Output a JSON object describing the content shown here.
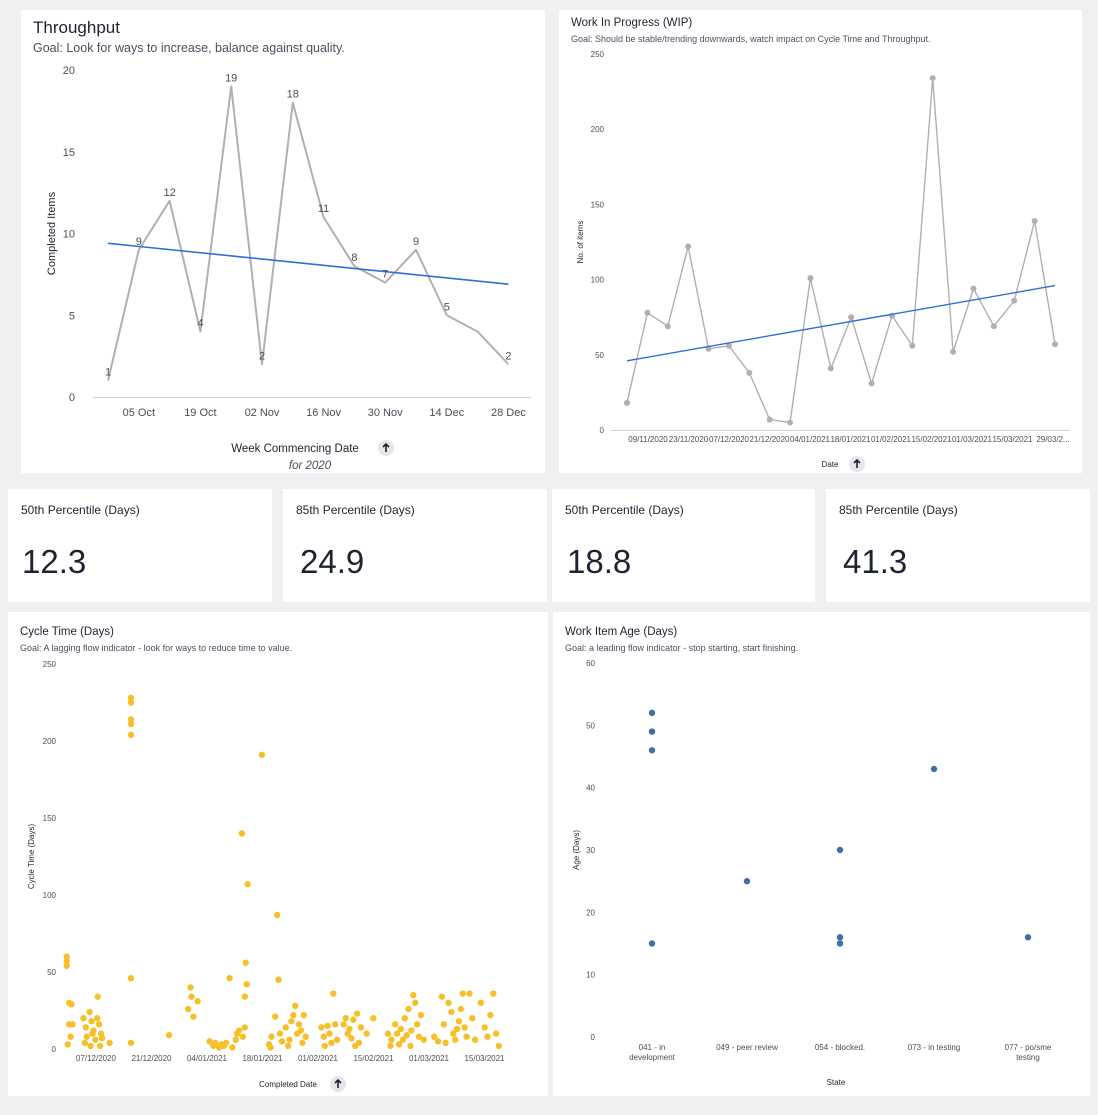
{
  "colors": {
    "line": "#b5aeb0",
    "trend": "#2f6fd6",
    "scatter_yellow": "#f7c02b",
    "scatter_blue": "#3e6fa8",
    "axis_text": "#4a4e5a"
  },
  "throughput": {
    "title": "Throughput",
    "subtitle": "Goal: Look for ways to increase, balance against quality.",
    "sort_icon": "arrow-up-icon",
    "filter_note": "for 2020",
    "chart_data": {
      "type": "line",
      "xlabel": "Week Commencing Date",
      "ylabel": "Completed Items",
      "ylim": [
        0,
        20
      ],
      "yticks": [
        0,
        5,
        10,
        15,
        20
      ],
      "xtick_labels": [
        "05 Oct",
        "19 Oct",
        "02 Nov",
        "16 Nov",
        "30 Nov",
        "14 Dec",
        "28 Dec"
      ],
      "x": [
        "28 Sep",
        "05 Oct",
        "12 Oct",
        "19 Oct",
        "26 Oct",
        "02 Nov",
        "09 Nov",
        "16 Nov",
        "23 Nov",
        "30 Nov",
        "07 Dec",
        "14 Dec",
        "21 Dec",
        "28 Dec"
      ],
      "series": [
        {
          "values": [
            1,
            9,
            12,
            4,
            19,
            2,
            18,
            11,
            8,
            7,
            9,
            5,
            4,
            2
          ]
        }
      ],
      "data_labels": [
        "1",
        "9",
        "12",
        "4",
        "19",
        "2",
        "18",
        "11",
        "8",
        "7",
        "9",
        "5",
        "",
        "2"
      ],
      "trendline": {
        "start": 9.4,
        "end": 6.9
      },
      "grid": false
    }
  },
  "wip": {
    "title": "Work In Progress (WIP)",
    "subtitle": "Goal: Should be stable/trending downwards, watch impact on Cycle Time and Throughput.",
    "sort_icon": "arrow-up-icon",
    "chart_data": {
      "type": "line",
      "xlabel": "Date",
      "ylabel": "No. of items",
      "ylim": [
        0,
        250
      ],
      "yticks": [
        0,
        50,
        100,
        150,
        200,
        250
      ],
      "xtick_labels": [
        "09/11/2020",
        "23/11/2020",
        "07/12/2020",
        "21/12/2020",
        "04/01/2021",
        "18/01/2021",
        "01/02/2021",
        "15/02/2021",
        "01/03/2021",
        "15/03/2021",
        "29/03/2..."
      ],
      "series": [
        {
          "values": [
            18,
            78,
            69,
            122,
            54,
            56,
            38,
            7,
            5,
            101,
            41,
            75,
            31,
            76,
            56,
            234,
            52,
            94,
            69,
            86,
            139,
            57
          ]
        }
      ],
      "trendline": {
        "start": 46,
        "end": 96
      },
      "grid": false
    }
  },
  "kpis": [
    {
      "title": "50th Percentile (Days)",
      "value": "12.3"
    },
    {
      "title": "85th Percentile (Days)",
      "value": "24.9"
    },
    {
      "title": "50th Percentile (Days)",
      "value": "18.8"
    },
    {
      "title": "85th Percentile (Days)",
      "value": "41.3"
    }
  ],
  "cycle_time": {
    "title": "Cycle Time (Days)",
    "subtitle": "Goal: A lagging flow indicator - look for ways to reduce time to value.",
    "sort_icon": "arrow-up-icon",
    "chart_data": {
      "type": "scatter",
      "xlabel": "Completed Date",
      "ylabel": "Cycle Time (Days)",
      "ylim": [
        0,
        250
      ],
      "xlim": [
        0,
        1
      ],
      "yticks": [
        0,
        50,
        100,
        150,
        200,
        250
      ],
      "xtick_labels": [
        "07/12/2020",
        "21/12/2020",
        "04/01/2021",
        "18/01/2021",
        "01/02/2021",
        "15/02/2021",
        "01/03/2021",
        "15/03/2021"
      ],
      "points": [
        [
          0.01,
          60
        ],
        [
          0.01,
          57
        ],
        [
          0.01,
          54
        ],
        [
          0.015,
          30
        ],
        [
          0.02,
          29
        ],
        [
          0.015,
          16
        ],
        [
          0.022,
          16
        ],
        [
          0.018,
          8
        ],
        [
          0.012,
          3
        ],
        [
          0.045,
          20
        ],
        [
          0.05,
          14
        ],
        [
          0.052,
          8
        ],
        [
          0.048,
          4
        ],
        [
          0.058,
          24
        ],
        [
          0.062,
          18
        ],
        [
          0.066,
          12
        ],
        [
          0.07,
          6
        ],
        [
          0.064,
          10
        ],
        [
          0.06,
          2
        ],
        [
          0.075,
          34
        ],
        [
          0.078,
          16
        ],
        [
          0.074,
          20
        ],
        [
          0.082,
          10
        ],
        [
          0.08,
          2
        ],
        [
          0.084,
          7
        ],
        [
          0.1,
          4
        ],
        [
          0.145,
          228
        ],
        [
          0.145,
          225
        ],
        [
          0.145,
          214
        ],
        [
          0.145,
          211
        ],
        [
          0.145,
          204
        ],
        [
          0.145,
          46
        ],
        [
          0.145,
          4
        ],
        [
          0.225,
          9
        ],
        [
          0.265,
          26
        ],
        [
          0.27,
          40
        ],
        [
          0.272,
          34
        ],
        [
          0.276,
          21
        ],
        [
          0.285,
          31
        ],
        [
          0.31,
          5
        ],
        [
          0.318,
          2
        ],
        [
          0.322,
          4
        ],
        [
          0.33,
          1
        ],
        [
          0.335,
          3
        ],
        [
          0.34,
          2
        ],
        [
          0.345,
          4
        ],
        [
          0.352,
          46
        ],
        [
          0.358,
          1
        ],
        [
          0.365,
          6
        ],
        [
          0.368,
          10
        ],
        [
          0.372,
          12
        ],
        [
          0.378,
          140
        ],
        [
          0.384,
          14
        ],
        [
          0.39,
          107
        ],
        [
          0.386,
          56
        ],
        [
          0.388,
          42
        ],
        [
          0.384,
          34
        ],
        [
          0.38,
          8
        ],
        [
          0.42,
          191
        ],
        [
          0.435,
          3
        ],
        [
          0.44,
          8
        ],
        [
          0.438,
          1
        ],
        [
          0.448,
          21
        ],
        [
          0.452,
          87
        ],
        [
          0.455,
          45
        ],
        [
          0.458,
          10
        ],
        [
          0.462,
          5
        ],
        [
          0.47,
          14
        ],
        [
          0.475,
          2
        ],
        [
          0.478,
          6
        ],
        [
          0.482,
          18
        ],
        [
          0.486,
          22
        ],
        [
          0.49,
          28
        ],
        [
          0.494,
          10
        ],
        [
          0.498,
          16
        ],
        [
          0.502,
          12
        ],
        [
          0.505,
          4
        ],
        [
          0.508,
          22
        ],
        [
          0.512,
          8
        ],
        [
          0.545,
          14
        ],
        [
          0.55,
          8
        ],
        [
          0.552,
          2
        ],
        [
          0.558,
          15
        ],
        [
          0.562,
          10
        ],
        [
          0.566,
          4
        ],
        [
          0.57,
          36
        ],
        [
          0.574,
          16
        ],
        [
          0.578,
          6
        ],
        [
          0.592,
          16
        ],
        [
          0.596,
          20
        ],
        [
          0.6,
          10
        ],
        [
          0.604,
          13
        ],
        [
          0.608,
          7
        ],
        [
          0.612,
          19
        ],
        [
          0.616,
          2
        ],
        [
          0.62,
          23
        ],
        [
          0.624,
          4
        ],
        [
          0.628,
          14
        ],
        [
          0.64,
          10
        ],
        [
          0.654,
          20
        ],
        [
          0.685,
          10
        ],
        [
          0.69,
          2
        ],
        [
          0.692,
          6
        ],
        [
          0.7,
          16
        ],
        [
          0.704,
          10
        ],
        [
          0.708,
          3
        ],
        [
          0.712,
          13
        ],
        [
          0.716,
          6
        ],
        [
          0.72,
          20
        ],
        [
          0.724,
          9
        ],
        [
          0.728,
          26
        ],
        [
          0.732,
          2
        ],
        [
          0.734,
          12
        ],
        [
          0.738,
          35
        ],
        [
          0.742,
          30
        ],
        [
          0.746,
          16
        ],
        [
          0.75,
          8
        ],
        [
          0.754,
          22
        ],
        [
          0.76,
          6
        ],
        [
          0.782,
          8
        ],
        [
          0.79,
          5
        ],
        [
          0.798,
          34
        ],
        [
          0.802,
          16
        ],
        [
          0.806,
          4
        ],
        [
          0.812,
          30
        ],
        [
          0.818,
          24
        ],
        [
          0.822,
          10
        ],
        [
          0.826,
          6
        ],
        [
          0.83,
          13
        ],
        [
          0.834,
          18
        ],
        [
          0.838,
          26
        ],
        [
          0.842,
          36
        ],
        [
          0.846,
          14
        ],
        [
          0.85,
          8
        ],
        [
          0.856,
          36
        ],
        [
          0.862,
          20
        ],
        [
          0.868,
          6
        ],
        [
          0.88,
          30
        ],
        [
          0.888,
          14
        ],
        [
          0.894,
          8
        ],
        [
          0.9,
          22
        ],
        [
          0.906,
          36
        ],
        [
          0.912,
          10
        ],
        [
          0.918,
          2
        ]
      ],
      "grid": false
    }
  },
  "work_item_age": {
    "title": "Work Item Age (Days)",
    "subtitle": "Goal: a leading flow indicator - stop starting, start finishing.",
    "chart_data": {
      "type": "scatter",
      "xlabel": "State",
      "ylabel": "Age (Days)",
      "ylim": [
        0,
        60
      ],
      "yticks": [
        0,
        10,
        20,
        30,
        40,
        50,
        60
      ],
      "categories": [
        "041 - in development",
        "049 - peer review",
        "054 - blocked.",
        "073 - in testing",
        "077 - po/sme testing"
      ],
      "category_lines": [
        [
          "041 - in",
          "development"
        ],
        [
          "049 - peer review"
        ],
        [
          "054 - blocked."
        ],
        [
          "073 - in testing"
        ],
        [
          "077 - po/sme",
          "testing"
        ]
      ],
      "points": [
        [
          0,
          52
        ],
        [
          0,
          49
        ],
        [
          0,
          46
        ],
        [
          0,
          15
        ],
        [
          1,
          25
        ],
        [
          2,
          30
        ],
        [
          2,
          16
        ],
        [
          2,
          15
        ],
        [
          3,
          43
        ],
        [
          4,
          16
        ]
      ],
      "grid": false
    }
  }
}
